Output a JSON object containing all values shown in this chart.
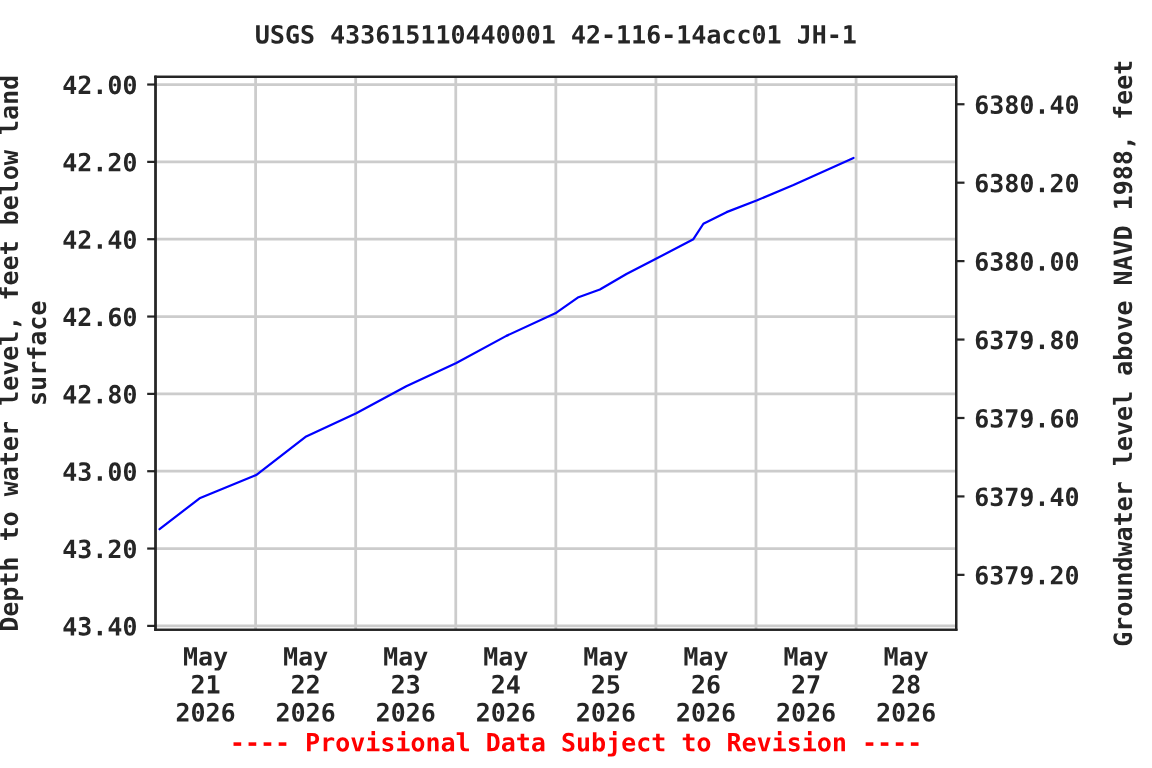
{
  "chart_data": {
    "type": "line",
    "title": "USGS 433615110440001 42-116-14acc01 JH-1",
    "xlabel": null,
    "ylabel": "Depth to water level, feet below land\nsurface",
    "y2label": "Groundwater level above NAVD 1988, feet",
    "x": [
      "2026-05-21T00:58",
      "2026-05-21T10:34",
      "2026-05-22T00:08",
      "2026-05-22T12:08",
      "2026-05-23T00:08",
      "2026-05-23T12:08",
      "2026-05-24T00:08",
      "2026-05-24T12:08",
      "2026-05-25T00:08",
      "2026-05-25T05:26",
      "2026-05-25T10:34",
      "2026-05-25T16:56",
      "2026-05-26T00:08",
      "2026-05-26T08:59",
      "2026-05-26T11:23",
      "2026-05-26T16:56",
      "2026-05-27T00:08",
      "2026-05-27T08:59",
      "2026-05-27T23:23"
    ],
    "series": [
      {
        "color": "#0000ff",
        "values": [
          43.15,
          43.07,
          43.01,
          42.91,
          42.85,
          42.78,
          42.72,
          42.65,
          42.59,
          42.55,
          42.53,
          42.49,
          42.45,
          42.4,
          42.36,
          42.33,
          42.3,
          42.26,
          42.19
        ]
      }
    ],
    "xlim": [
      "2026-05-21",
      "2026-05-29"
    ],
    "xticks": [
      {
        "value": "2026-05-21T12:00",
        "label": "May\n21\n2026"
      },
      {
        "value": "2026-05-22T12:00",
        "label": "May\n22\n2026"
      },
      {
        "value": "2026-05-23T12:00",
        "label": "May\n23\n2026"
      },
      {
        "value": "2026-05-24T12:00",
        "label": "May\n24\n2026"
      },
      {
        "value": "2026-05-25T12:00",
        "label": "May\n25\n2026"
      },
      {
        "value": "2026-05-26T12:00",
        "label": "May\n26\n2026"
      },
      {
        "value": "2026-05-27T12:00",
        "label": "May\n27\n2026"
      },
      {
        "value": "2026-05-28T12:00",
        "label": "May\n28\n2026"
      },
      {
        "value": "2026-05-22",
        "label": null
      },
      {
        "value": "2026-05-23",
        "label": null
      },
      {
        "value": "2026-05-24",
        "label": null
      },
      {
        "value": "2026-05-25",
        "label": null
      },
      {
        "value": "2026-05-26",
        "label": null
      },
      {
        "value": "2026-05-27",
        "label": null
      },
      {
        "value": "2026-05-28",
        "label": null
      }
    ],
    "ylim": [
      43.41,
      41.98
    ],
    "yticks": [
      {
        "value": 42.0,
        "label": "42.00"
      },
      {
        "value": 42.2,
        "label": "42.20"
      },
      {
        "value": 42.4,
        "label": "42.40"
      },
      {
        "value": 42.6,
        "label": "42.60"
      },
      {
        "value": 42.8,
        "label": "42.80"
      },
      {
        "value": 43.0,
        "label": "43.00"
      },
      {
        "value": 43.2,
        "label": "43.20"
      },
      {
        "value": 43.4,
        "label": "43.40"
      }
    ],
    "y2lim": [
      6379.06,
      6380.47
    ],
    "y2ticks": [
      {
        "value": 6379.2,
        "label": "6379.20"
      },
      {
        "value": 6379.4,
        "label": "6379.40"
      },
      {
        "value": 6379.6,
        "label": "6379.60"
      },
      {
        "value": 6379.8,
        "label": "6379.80"
      },
      {
        "value": 6380.0,
        "label": "6380.00"
      },
      {
        "value": 6380.2,
        "label": "6380.20"
      },
      {
        "value": 6380.4,
        "label": "6380.40"
      }
    ],
    "grid": true,
    "line_style": "solid",
    "marker": "none",
    "annotations": [
      "---- Provisional Data Subject to Revision ----"
    ]
  }
}
